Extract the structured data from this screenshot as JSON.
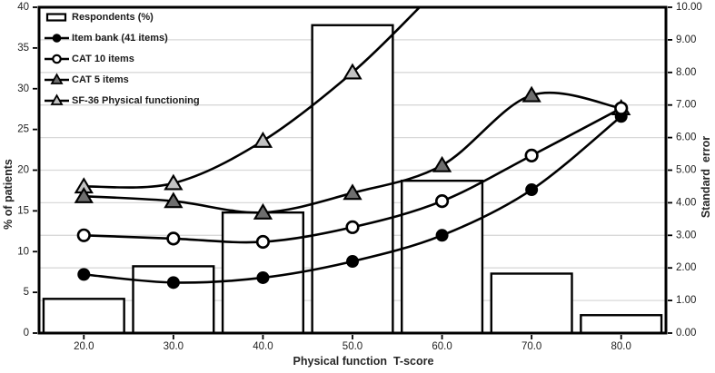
{
  "chart_data": {
    "type": "combo-bar-line",
    "title": "",
    "xlabel": "Physical function  T-score",
    "ylabel_left": "% of patients",
    "ylabel_right": "Standard  error",
    "xlim": [
      15,
      85
    ],
    "ylim_left": [
      0,
      40
    ],
    "ylim_right": [
      0,
      10
    ],
    "grid": "horizontal gridlines every 1.00 standard error",
    "legend_position": "top-left inside plot",
    "x": [
      20,
      30,
      40,
      50,
      60,
      70,
      80
    ],
    "xticks": [
      "20.0",
      "30.0",
      "40.0",
      "50.0",
      "60.0",
      "70.0",
      "80.0"
    ],
    "yticks_left": [
      "0",
      "5",
      "10",
      "15",
      "20",
      "25",
      "30",
      "35",
      "40"
    ],
    "yticks_right": [
      "0.00",
      "1.00",
      "2.00",
      "3.00",
      "4.00",
      "5.00",
      "6.00",
      "7.00",
      "8.00",
      "9.00",
      "10.00"
    ],
    "bars": {
      "label": "Respondents (%)",
      "axis": "left",
      "values_percent": [
        4.2,
        8.2,
        14.8,
        37.8,
        18.7,
        7.3,
        2.2
      ]
    },
    "series": [
      {
        "label": "Item bank (41 items)",
        "marker": "filled-circle",
        "axis": "right",
        "values_se": [
          1.8,
          1.55,
          1.7,
          2.2,
          3.0,
          4.4,
          6.65
        ]
      },
      {
        "label": "CAT 10 items",
        "marker": "open-circle",
        "axis": "right",
        "values_se": [
          3.0,
          2.9,
          2.8,
          3.25,
          4.05,
          5.45,
          6.9
        ]
      },
      {
        "label": "CAT 5 items",
        "marker": "filled-triangle-dark-gray",
        "axis": "right",
        "values_se": [
          4.2,
          4.05,
          3.7,
          4.3,
          5.15,
          7.3,
          6.9
        ]
      },
      {
        "label": "SF-36 Physical functioning",
        "marker": "filled-triangle-light-gray",
        "axis": "right",
        "values_se": [
          4.5,
          4.6,
          5.9,
          8.0
        ],
        "offscreen_exit": {
          "x": 57.5,
          "se": 10.0
        }
      }
    ],
    "colors": {
      "line": "#000000",
      "bar_fill": "#ffffff",
      "bar_border": "#000000",
      "grid": "#d9d9d9",
      "frame": "#000000",
      "cat5_triangle_fill": "#6e6e6e",
      "sf36_triangle_fill": "#c2c2c2",
      "text": "#1f1f1f"
    }
  }
}
